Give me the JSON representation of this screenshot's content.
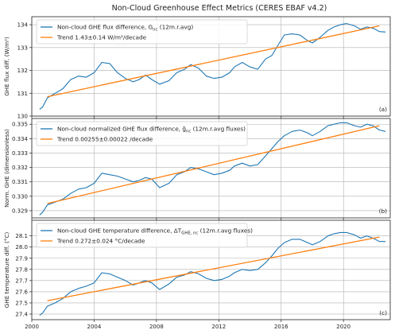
{
  "figure_title": "Non-Cloud Greenhouse Effect Metrics  (CERES EBAF v4.2)",
  "x_ticks": [
    2000,
    2004,
    2008,
    2012,
    2016,
    2020
  ],
  "chart_data": [
    {
      "type": "line",
      "panel_label": "(a)",
      "ylabel": "GHE flux diff. (W/m²)",
      "ylim": [
        130.0,
        134.35
      ],
      "y_ticks": [
        "130",
        "131",
        "132",
        "133",
        "134"
      ],
      "y_tick_values": [
        130,
        131,
        132,
        133,
        134
      ],
      "xlim": [
        2000.0,
        2023.0
      ],
      "grid": true,
      "legend": "top-left",
      "series": [
        {
          "name": "Non-cloud GHE flux difference, G",
          "name_sub": "nc",
          "name_suffix": " (12m.r.avg)",
          "color": "#1f77b4",
          "x": [
            2000.5,
            2000.7,
            2001.0,
            2001.5,
            2002.0,
            2002.5,
            2003.0,
            2003.5,
            2004.0,
            2004.5,
            2005.0,
            2005.5,
            2006.0,
            2006.5,
            2006.9,
            2007.3,
            2007.7,
            2008.2,
            2008.8,
            2009.3,
            2009.8,
            2010.2,
            2010.7,
            2011.2,
            2011.7,
            2012.2,
            2012.7,
            2013.0,
            2013.5,
            2014.0,
            2014.5,
            2015.0,
            2015.4,
            2015.8,
            2016.2,
            2016.7,
            2017.2,
            2017.7,
            2018.0,
            2018.5,
            2019.0,
            2019.4,
            2019.8,
            2020.2,
            2020.7,
            2021.1,
            2021.5,
            2021.9,
            2022.3,
            2022.7
          ],
          "y": [
            130.3,
            130.4,
            130.8,
            131.0,
            131.2,
            131.6,
            131.75,
            131.7,
            131.9,
            132.35,
            132.3,
            131.9,
            131.65,
            131.5,
            131.6,
            131.8,
            131.6,
            131.4,
            131.55,
            131.9,
            132.05,
            132.25,
            132.1,
            131.75,
            131.65,
            131.7,
            131.9,
            132.15,
            132.35,
            132.15,
            132.05,
            132.5,
            132.65,
            133.1,
            133.55,
            133.6,
            133.55,
            133.3,
            133.2,
            133.45,
            133.75,
            133.9,
            134.0,
            134.05,
            133.95,
            133.8,
            133.9,
            133.85,
            133.7,
            133.68
          ]
        },
        {
          "name": "Trend 1.43±0.14 W/m²/decade",
          "color": "#ff7f0e",
          "x": [
            2001.0,
            2022.3
          ],
          "y": [
            130.85,
            133.95
          ]
        }
      ]
    },
    {
      "type": "line",
      "panel_label": "(b)",
      "ylabel": "Norm. GHE (dimensionless)",
      "ylim": [
        0.3285,
        0.3354
      ],
      "y_ticks": [
        "0.329",
        "0.330",
        "0.331",
        "0.332",
        "0.333",
        "0.334",
        "0.335"
      ],
      "y_tick_values": [
        0.329,
        0.33,
        0.331,
        0.332,
        0.333,
        0.334,
        0.335
      ],
      "xlim": [
        2000.0,
        2023.0
      ],
      "grid": true,
      "legend": "top-left",
      "series": [
        {
          "name": "Non-cloud normalized GHE flux difference, ĝ",
          "name_sub": "nc",
          "name_suffix": " (12m.r.avg fluxes)",
          "color": "#1f77b4",
          "x": [
            2000.5,
            2000.7,
            2001.0,
            2001.5,
            2002.0,
            2002.5,
            2003.0,
            2003.5,
            2004.0,
            2004.5,
            2005.0,
            2005.5,
            2006.0,
            2006.5,
            2006.9,
            2007.3,
            2007.7,
            2008.2,
            2008.8,
            2009.3,
            2009.8,
            2010.2,
            2010.7,
            2011.2,
            2011.7,
            2012.2,
            2012.7,
            2013.0,
            2013.5,
            2014.0,
            2014.5,
            2015.0,
            2015.4,
            2015.8,
            2016.2,
            2016.7,
            2017.2,
            2017.7,
            2018.0,
            2018.5,
            2019.0,
            2019.4,
            2019.8,
            2020.2,
            2020.7,
            2021.1,
            2021.5,
            2021.9,
            2022.3,
            2022.7
          ],
          "y": [
            0.3287,
            0.3289,
            0.3294,
            0.3296,
            0.3298,
            0.3302,
            0.3305,
            0.3306,
            0.3309,
            0.3316,
            0.3315,
            0.3314,
            0.3312,
            0.331,
            0.3311,
            0.3313,
            0.3312,
            0.3306,
            0.3309,
            0.3315,
            0.3317,
            0.332,
            0.3319,
            0.3317,
            0.3315,
            0.3316,
            0.3318,
            0.3321,
            0.3323,
            0.3321,
            0.3322,
            0.3328,
            0.3333,
            0.3338,
            0.3342,
            0.3345,
            0.3346,
            0.3344,
            0.3342,
            0.3345,
            0.3349,
            0.335,
            0.3351,
            0.3351,
            0.3349,
            0.3348,
            0.335,
            0.3349,
            0.3346,
            0.3345
          ]
        },
        {
          "name": "Trend 0.00255±0.00022 /decade",
          "color": "#ff7f0e",
          "x": [
            2001.0,
            2022.3
          ],
          "y": [
            0.3295,
            0.3349
          ]
        }
      ]
    },
    {
      "type": "line",
      "panel_label": "(c)",
      "ylabel": "GHE temperature diff. (°C)",
      "ylim": [
        27.35,
        28.24
      ],
      "y_ticks": [
        "27.4",
        "27.5",
        "27.6",
        "27.7",
        "27.8",
        "27.9",
        "28.0",
        "28.1"
      ],
      "y_tick_values": [
        27.4,
        27.5,
        27.6,
        27.7,
        27.8,
        27.9,
        28.0,
        28.1
      ],
      "xlim": [
        2000.0,
        2023.0
      ],
      "grid": true,
      "legend": "top-left",
      "series": [
        {
          "name": "Non-cloud GHE temperature difference, ΔT",
          "name_sub": "GHE, nc",
          "name_suffix": " (12m.r.avg fluxes)",
          "color": "#1f77b4",
          "x": [
            2000.5,
            2000.7,
            2001.0,
            2001.5,
            2002.0,
            2002.5,
            2003.0,
            2003.5,
            2004.0,
            2004.5,
            2005.0,
            2005.5,
            2006.0,
            2006.5,
            2006.9,
            2007.3,
            2007.7,
            2008.2,
            2008.8,
            2009.3,
            2009.8,
            2010.2,
            2010.7,
            2011.2,
            2011.7,
            2012.2,
            2012.7,
            2013.0,
            2013.5,
            2014.0,
            2014.5,
            2015.0,
            2015.4,
            2015.8,
            2016.2,
            2016.7,
            2017.2,
            2017.7,
            2018.0,
            2018.5,
            2019.0,
            2019.4,
            2019.8,
            2020.2,
            2020.7,
            2021.1,
            2021.5,
            2021.9,
            2022.3,
            2022.7
          ],
          "y": [
            27.39,
            27.41,
            27.47,
            27.5,
            27.54,
            27.6,
            27.63,
            27.65,
            27.68,
            27.77,
            27.76,
            27.73,
            27.7,
            27.66,
            27.68,
            27.7,
            27.68,
            27.62,
            27.67,
            27.73,
            27.75,
            27.78,
            27.76,
            27.72,
            27.7,
            27.71,
            27.74,
            27.77,
            27.8,
            27.79,
            27.8,
            27.86,
            27.92,
            27.99,
            28.04,
            28.07,
            28.07,
            28.04,
            28.02,
            28.05,
            28.1,
            28.12,
            28.13,
            28.13,
            28.11,
            28.08,
            28.1,
            28.08,
            28.05,
            28.05
          ]
        },
        {
          "name": "Trend 0.272±0.024 °C/decade",
          "color": "#ff7f0e",
          "x": [
            2001.0,
            2022.3
          ],
          "y": [
            27.52,
            28.09
          ]
        }
      ]
    }
  ]
}
